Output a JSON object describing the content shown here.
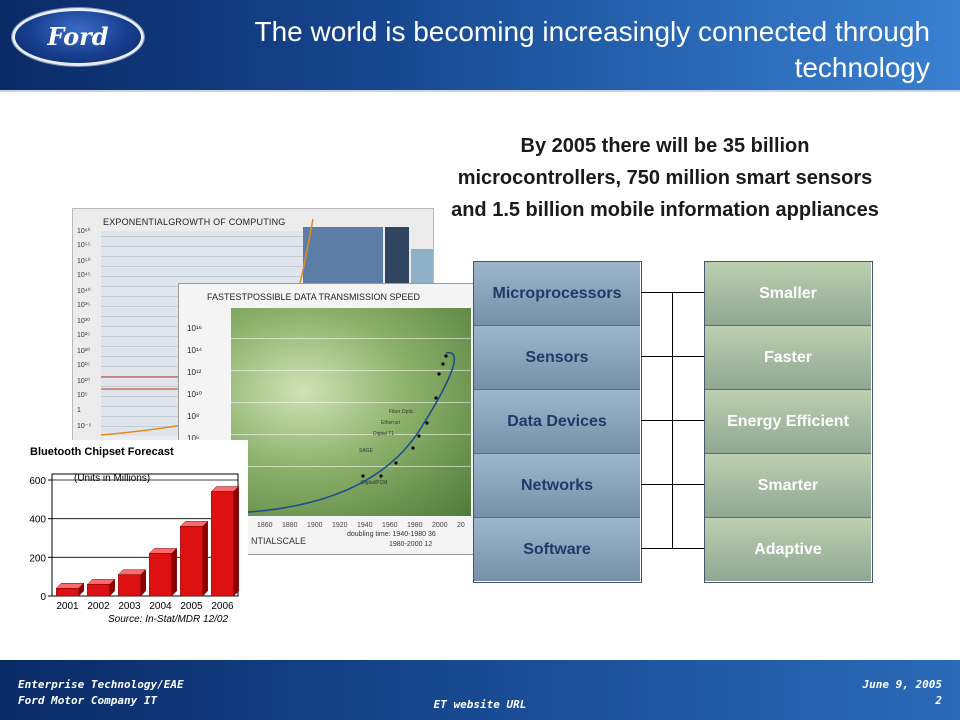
{
  "header": {
    "logo_text": "Ford",
    "title": "The world is becoming increasingly connected through technology"
  },
  "subtitle": "By 2005 there will be 35 billion microcontrollers, 750 million smart sensors and 1.5 billion mobile information appliances",
  "figures": {
    "computing": {
      "title": "EXPONENTIALGROWTH OF COMPUTING",
      "y_ticks": [
        "10⁶⁰",
        "10⁵⁵",
        "10⁵⁰",
        "10⁴⁵",
        "10⁴⁰",
        "10³⁵",
        "10³⁰",
        "10²⁵",
        "10²⁰",
        "10¹⁵",
        "10¹⁰",
        "10⁵",
        "1",
        "10⁻⁵"
      ]
    },
    "transmission": {
      "title": "FASTESTPOSSIBLE DATA TRANSMISSION SPEED",
      "y_ticks": [
        "10¹⁶",
        "10¹⁴",
        "10¹²",
        "10¹⁰",
        "10⁸",
        "10⁶"
      ],
      "x_ticks": [
        "1860",
        "1880",
        "1900",
        "1920",
        "1940",
        "1960",
        "1980",
        "2000",
        "20"
      ],
      "annotations": [
        "Fiber Optic",
        "Ethernet",
        "Digital T1",
        "SAGE",
        "Digital/PCM"
      ],
      "footer_left": "NTIALSCALE",
      "footer_right_1": "doubling time: 1940-1980 36",
      "footer_right_2": "1980-2000 12"
    },
    "bluetooth": {
      "title": "Bluetooth Chipset Forecast",
      "units": "(Units in Millions)",
      "source": "Source: In-Stat/MDR 12/02"
    }
  },
  "chart_data": {
    "type": "bar",
    "title": "Bluetooth Chipset Forecast",
    "categories": [
      "2001",
      "2002",
      "2003",
      "2004",
      "2005",
      "2006"
    ],
    "values": [
      40,
      60,
      110,
      220,
      360,
      540
    ],
    "y_ticks": [
      "0",
      "200",
      "400",
      "600"
    ],
    "ylim": [
      0,
      600
    ],
    "units": "(Units in Millions)",
    "source": "Source: In-Stat/MDR 12/02",
    "bar_color": "#dd1111"
  },
  "left_column": [
    "Microprocessors",
    "Sensors",
    "Data Devices",
    "Networks",
    "Software"
  ],
  "right_column": [
    "Smaller",
    "Faster",
    "Energy Efficient",
    "Smarter",
    "Adaptive"
  ],
  "footer": {
    "org_line1": "Enterprise Technology/EAE",
    "org_line2": "Ford Motor Company IT",
    "center": "ET website URL",
    "date": "June 9, 2005",
    "page": "2"
  },
  "colors": {
    "header_dark": "#0a2a66",
    "header_light": "#3a7fd0",
    "left_box": "#8aa3bb",
    "left_text": "#1d3b66",
    "right_box": "#a6bca2",
    "right_text": "#ffffff"
  }
}
